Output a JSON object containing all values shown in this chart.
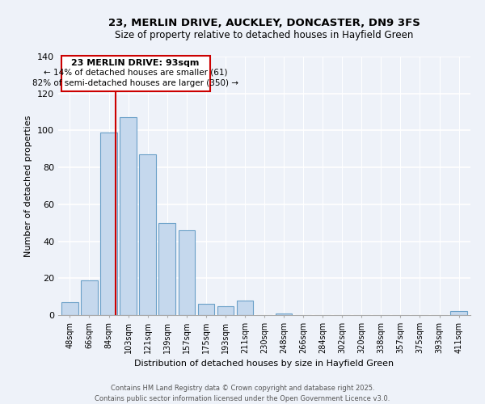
{
  "title1": "23, MERLIN DRIVE, AUCKLEY, DONCASTER, DN9 3FS",
  "title2": "Size of property relative to detached houses in Hayfield Green",
  "xlabel": "Distribution of detached houses by size in Hayfield Green",
  "ylabel": "Number of detached properties",
  "categories": [
    "48sqm",
    "66sqm",
    "84sqm",
    "103sqm",
    "121sqm",
    "139sqm",
    "157sqm",
    "175sqm",
    "193sqm",
    "211sqm",
    "230sqm",
    "248sqm",
    "266sqm",
    "284sqm",
    "302sqm",
    "320sqm",
    "338sqm",
    "357sqm",
    "375sqm",
    "393sqm",
    "411sqm"
  ],
  "values": [
    7,
    19,
    99,
    107,
    87,
    50,
    46,
    6,
    5,
    8,
    0,
    1,
    0,
    0,
    0,
    0,
    0,
    0,
    0,
    0,
    2
  ],
  "bar_color": "#c5d8ed",
  "bar_edge_color": "#6aa0c8",
  "highlight_label": "23 MERLIN DRIVE: 93sqm",
  "annotation_line1": "← 14% of detached houses are smaller (61)",
  "annotation_line2": "82% of semi-detached houses are larger (350) →",
  "vline_color": "#cc0000",
  "box_edge_color": "#cc0000",
  "ylim": [
    0,
    140
  ],
  "yticks": [
    0,
    20,
    40,
    60,
    80,
    100,
    120,
    140
  ],
  "footer1": "Contains HM Land Registry data © Crown copyright and database right 2025.",
  "footer2": "Contains public sector information licensed under the Open Government Licence v3.0.",
  "bg_color": "#eef2f9"
}
